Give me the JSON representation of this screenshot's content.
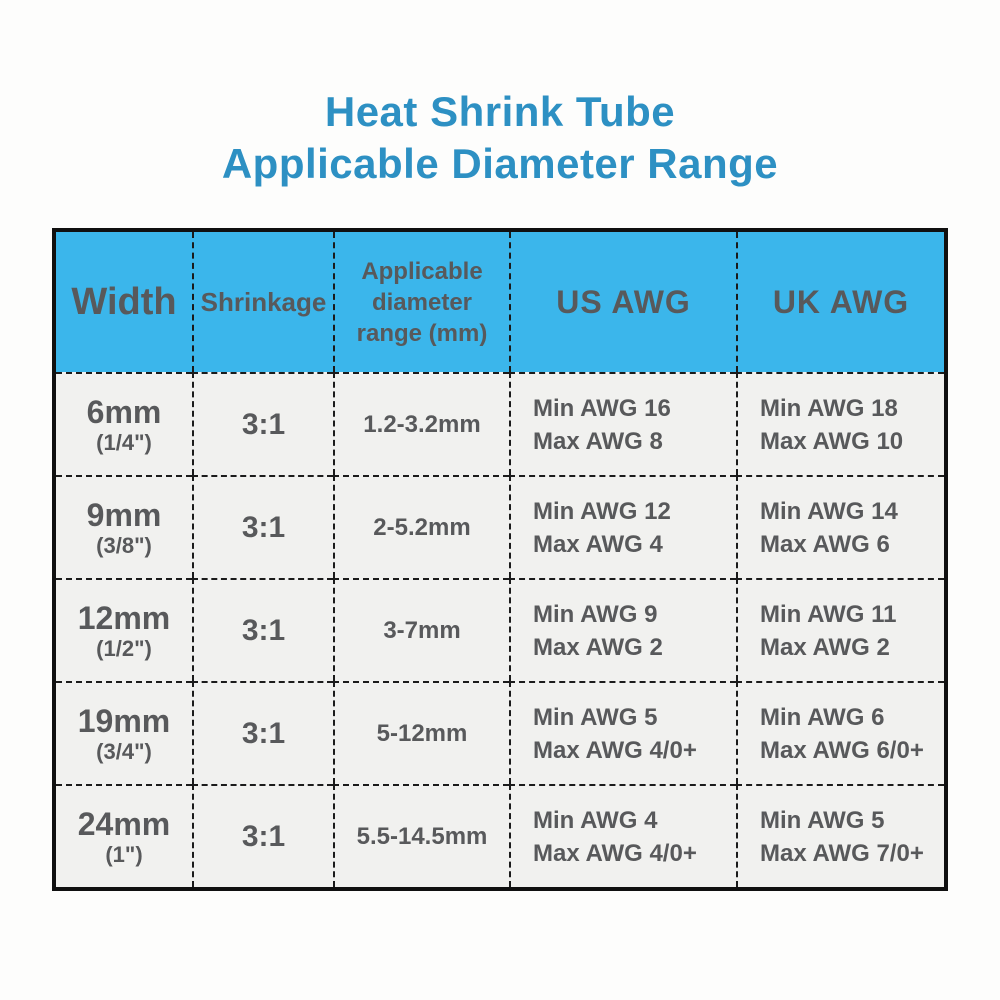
{
  "title": {
    "line1": "Heat Shrink Tube",
    "line2": "Applicable Diameter Range"
  },
  "colors": {
    "title_text": "#2d90c3",
    "header_bg": "#3bb6eb",
    "table_text": "#58595b",
    "row_bg": "#f1f1ef",
    "border": "#101010"
  },
  "table": {
    "headers": {
      "width": "Width",
      "shrinkage": "Shrinkage",
      "diameter": "Applicable\ndiameter\nrange (mm)",
      "us_awg": "US AWG",
      "uk_awg": "UK AWG"
    },
    "rows": [
      {
        "width_mm": "6mm",
        "width_in": "(1/4\")",
        "shrinkage": "3:1",
        "diameter_range": "1.2-3.2mm",
        "us_min": "Min AWG 16",
        "us_max": "Max AWG 8",
        "uk_min": "Min AWG 18",
        "uk_max": "Max AWG 10"
      },
      {
        "width_mm": "9mm",
        "width_in": "(3/8\")",
        "shrinkage": "3:1",
        "diameter_range": "2-5.2mm",
        "us_min": "Min AWG 12",
        "us_max": "Max AWG 4",
        "uk_min": "Min AWG 14",
        "uk_max": "Max AWG 6"
      },
      {
        "width_mm": "12mm",
        "width_in": "(1/2\")",
        "shrinkage": "3:1",
        "diameter_range": "3-7mm",
        "us_min": "Min AWG 9",
        "us_max": "Max AWG 2",
        "uk_min": "Min AWG 11",
        "uk_max": "Max AWG 2"
      },
      {
        "width_mm": "19mm",
        "width_in": "(3/4\")",
        "shrinkage": "3:1",
        "diameter_range": "5-12mm",
        "us_min": "Min AWG 5",
        "us_max": "Max AWG 4/0+",
        "uk_min": "Min AWG 6",
        "uk_max": "Max AWG 6/0+"
      },
      {
        "width_mm": "24mm",
        "width_in": "(1\")",
        "shrinkage": "3:1",
        "diameter_range": "5.5-14.5mm",
        "us_min": "Min AWG 4",
        "us_max": "Max AWG 4/0+",
        "uk_min": "Min AWG 5",
        "uk_max": "Max AWG 7/0+"
      }
    ]
  },
  "chart_data": {
    "type": "table",
    "title": "Heat Shrink Tube Applicable Diameter Range",
    "columns": [
      "Width",
      "Shrinkage",
      "Applicable diameter range (mm)",
      "US AWG",
      "UK AWG"
    ],
    "rows": [
      [
        "6mm (1/4\")",
        "3:1",
        "1.2-3.2mm",
        "Min AWG 16 / Max AWG 8",
        "Min AWG 18 / Max AWG 10"
      ],
      [
        "9mm (3/8\")",
        "3:1",
        "2-5.2mm",
        "Min AWG 12 / Max AWG 4",
        "Min AWG 14 / Max AWG 6"
      ],
      [
        "12mm (1/2\")",
        "3:1",
        "3-7mm",
        "Min AWG 9 / Max AWG 2",
        "Min AWG 11 / Max AWG 2"
      ],
      [
        "19mm (3/4\")",
        "3:1",
        "5-12mm",
        "Min AWG 5 / Max AWG 4/0+",
        "Min AWG 6 / Max AWG 6/0+"
      ],
      [
        "24mm (1\")",
        "3:1",
        "5.5-14.5mm",
        "Min AWG 4 / Max AWG 4/0+",
        "Min AWG 5 / Max AWG 7/0+"
      ]
    ]
  }
}
